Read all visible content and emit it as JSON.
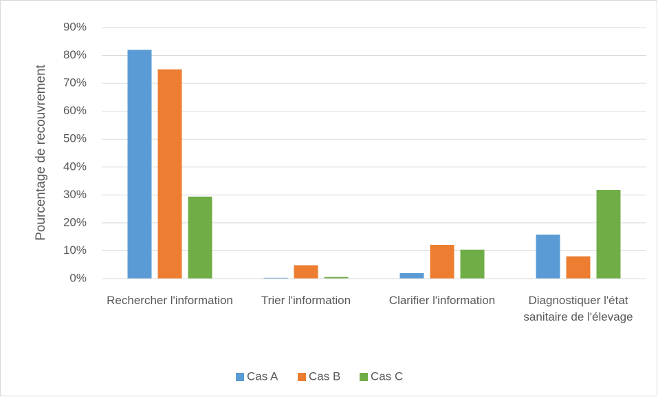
{
  "chart_data": {
    "type": "bar",
    "y_label": "Pourcentage de recouvrement",
    "categories": [
      "Rechercher l'information",
      "Trier l'information",
      "Clarifier l'information",
      "Diagnostiquer l'état sanitaire de l'élevage"
    ],
    "series": [
      {
        "name": "Cas A",
        "color": "#5b9bd5",
        "values": [
          82,
          0.3,
          2,
          15.8
        ]
      },
      {
        "name": "Cas B",
        "color": "#ed7d31",
        "values": [
          75,
          4.8,
          12.1,
          8
        ]
      },
      {
        "name": "Cas C",
        "color": "#70ad47",
        "values": [
          29.4,
          0.6,
          10.4,
          31.8
        ]
      }
    ],
    "ylim": [
      0,
      90
    ],
    "yticks": [
      {
        "value": 0,
        "label": "0%"
      },
      {
        "value": 10,
        "label": "10%"
      },
      {
        "value": 20,
        "label": "20%"
      },
      {
        "value": 30,
        "label": "30%"
      },
      {
        "value": 40,
        "label": "40%"
      },
      {
        "value": 50,
        "label": "50%"
      },
      {
        "value": 60,
        "label": "60%"
      },
      {
        "value": 70,
        "label": "70%"
      },
      {
        "value": 80,
        "label": "80%"
      },
      {
        "value": 90,
        "label": "90%"
      }
    ],
    "grid": true,
    "legend": "bottom"
  }
}
